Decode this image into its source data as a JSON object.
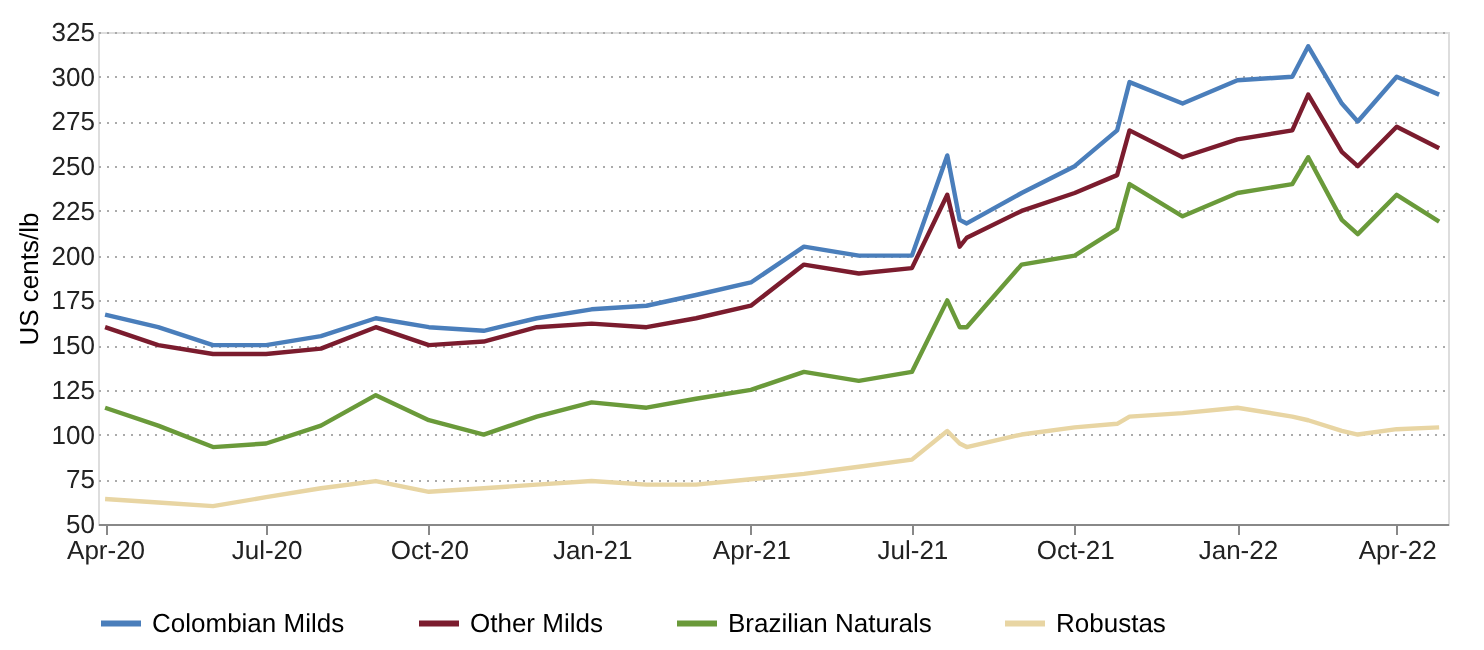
{
  "chart_data": {
    "type": "line",
    "ylabel": "US cents/lb",
    "x": [
      "2020-04-01",
      "2020-05-01",
      "2020-06-01",
      "2020-07-01",
      "2020-08-01",
      "2020-09-01",
      "2020-10-01",
      "2020-11-01",
      "2020-12-01",
      "2021-01-01",
      "2021-02-01",
      "2021-03-01",
      "2021-04-01",
      "2021-05-01",
      "2021-06-01",
      "2021-07-01",
      "2021-07-21",
      "2021-07-28",
      "2021-08-01",
      "2021-09-01",
      "2021-10-01",
      "2021-10-25",
      "2021-11-01",
      "2021-12-01",
      "2022-01-01",
      "2022-02-01",
      "2022-02-10",
      "2022-03-01",
      "2022-03-10",
      "2022-04-01",
      "2022-04-25"
    ],
    "series": [
      {
        "name": "Colombian Milds",
        "color": "#4a7ebb",
        "values": [
          167,
          160,
          150,
          150,
          155,
          165,
          160,
          158,
          165,
          170,
          172,
          178,
          185,
          205,
          200,
          200,
          256,
          220,
          218,
          235,
          250,
          270,
          297,
          285,
          298,
          300,
          317,
          285,
          275,
          300,
          290
        ]
      },
      {
        "name": "Other Milds",
        "color": "#7b1c2e",
        "values": [
          160,
          150,
          145,
          145,
          148,
          160,
          150,
          152,
          160,
          162,
          160,
          165,
          172,
          195,
          190,
          193,
          234,
          205,
          210,
          225,
          235,
          245,
          270,
          255,
          265,
          270,
          290,
          258,
          250,
          272,
          260
        ]
      },
      {
        "name": "Brazilian Naturals",
        "color": "#6a9a3a",
        "values": [
          115,
          105,
          93,
          95,
          105,
          122,
          108,
          100,
          110,
          118,
          115,
          120,
          125,
          135,
          130,
          135,
          175,
          160,
          160,
          195,
          200,
          215,
          240,
          222,
          235,
          240,
          255,
          220,
          212,
          234,
          219
        ]
      },
      {
        "name": "Robustas",
        "color": "#e8d5a3",
        "values": [
          64,
          62,
          60,
          65,
          70,
          74,
          68,
          70,
          72,
          74,
          72,
          72,
          75,
          78,
          82,
          86,
          102,
          95,
          93,
          100,
          104,
          106,
          110,
          112,
          115,
          110,
          108,
          102,
          100,
          103,
          104
        ]
      }
    ],
    "xlim": [
      "2020-03-28",
      "2022-04-30"
    ],
    "xticks": [
      {
        "value": "2020-04-01",
        "label": "Apr-20"
      },
      {
        "value": "2020-07-01",
        "label": "Jul-20"
      },
      {
        "value": "2020-10-01",
        "label": "Oct-20"
      },
      {
        "value": "2021-01-01",
        "label": "Jan-21"
      },
      {
        "value": "2021-04-01",
        "label": "Apr-21"
      },
      {
        "value": "2021-07-01",
        "label": "Jul-21"
      },
      {
        "value": "2021-10-01",
        "label": "Oct-21"
      },
      {
        "value": "2022-01-01",
        "label": "Jan-22"
      },
      {
        "value": "2022-04-01",
        "label": "Apr-22"
      }
    ],
    "ylim": [
      50,
      325
    ],
    "yticks": [
      50,
      75,
      100,
      125,
      150,
      175,
      200,
      225,
      250,
      275,
      300,
      325
    ],
    "grid": "y",
    "legend": "bottom",
    "marker": "none",
    "line_style": "solid"
  }
}
